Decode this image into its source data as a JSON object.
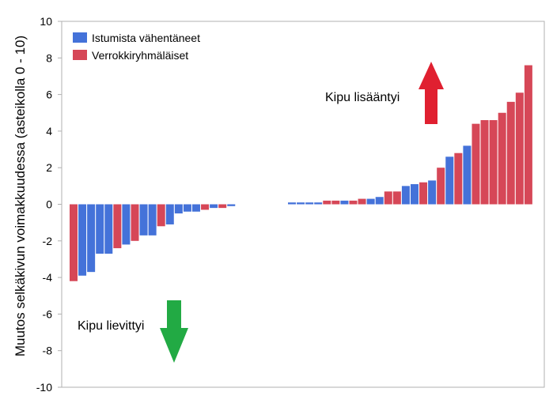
{
  "chart_data": {
    "type": "bar",
    "title": "",
    "xlabel": "",
    "ylabel": "Muutos selkäkivun voimakkuudessa (asteikolla 0 - 10)",
    "ylim": [
      -10,
      10
    ],
    "yticks": [
      -10,
      -8,
      -6,
      -4,
      -2,
      0,
      2,
      4,
      6,
      8,
      10
    ],
    "grid": false,
    "legend_position": "top-left",
    "series": [
      {
        "name": "Istumista vähentäneet",
        "color": "#4472d9"
      },
      {
        "name": "Verrokkiryhmäläiset",
        "color": "#d64757"
      }
    ],
    "groups": [
      {
        "name": "decreased",
        "bars": [
          {
            "value": -4.2,
            "series": 1
          },
          {
            "value": -3.9,
            "series": 0
          },
          {
            "value": -3.7,
            "series": 0
          },
          {
            "value": -2.7,
            "series": 0
          },
          {
            "value": -2.7,
            "series": 0
          },
          {
            "value": -2.4,
            "series": 1
          },
          {
            "value": -2.2,
            "series": 0
          },
          {
            "value": -2.0,
            "series": 1
          },
          {
            "value": -1.7,
            "series": 0
          },
          {
            "value": -1.7,
            "series": 0
          },
          {
            "value": -1.2,
            "series": 1
          },
          {
            "value": -1.1,
            "series": 0
          },
          {
            "value": -0.5,
            "series": 0
          },
          {
            "value": -0.4,
            "series": 0
          },
          {
            "value": -0.4,
            "series": 0
          },
          {
            "value": -0.3,
            "series": 1
          },
          {
            "value": -0.2,
            "series": 0
          },
          {
            "value": -0.2,
            "series": 1
          },
          {
            "value": -0.1,
            "series": 0
          }
        ]
      },
      {
        "name": "increased",
        "bars": [
          {
            "value": 0.1,
            "series": 0
          },
          {
            "value": 0.1,
            "series": 0
          },
          {
            "value": 0.1,
            "series": 0
          },
          {
            "value": 0.1,
            "series": 0
          },
          {
            "value": 0.2,
            "series": 1
          },
          {
            "value": 0.2,
            "series": 1
          },
          {
            "value": 0.2,
            "series": 0
          },
          {
            "value": 0.2,
            "series": 1
          },
          {
            "value": 0.3,
            "series": 1
          },
          {
            "value": 0.3,
            "series": 0
          },
          {
            "value": 0.4,
            "series": 0
          },
          {
            "value": 0.7,
            "series": 1
          },
          {
            "value": 0.7,
            "series": 1
          },
          {
            "value": 1.0,
            "series": 0
          },
          {
            "value": 1.1,
            "series": 0
          },
          {
            "value": 1.2,
            "series": 1
          },
          {
            "value": 1.3,
            "series": 0
          },
          {
            "value": 2.0,
            "series": 1
          },
          {
            "value": 2.6,
            "series": 0
          },
          {
            "value": 2.8,
            "series": 1
          },
          {
            "value": 3.2,
            "series": 0
          },
          {
            "value": 4.4,
            "series": 1
          },
          {
            "value": 4.6,
            "series": 1
          },
          {
            "value": 4.6,
            "series": 1
          },
          {
            "value": 5.0,
            "series": 1
          },
          {
            "value": 5.6,
            "series": 1
          },
          {
            "value": 6.1,
            "series": 1
          },
          {
            "value": 7.6,
            "series": 1
          }
        ]
      }
    ],
    "annotations": [
      {
        "text": "Kipu lisääntyi",
        "arrow": "up",
        "color": "#e02030"
      },
      {
        "text": "Kipu lievittyi",
        "arrow": "down",
        "color": "#22aa44"
      }
    ]
  }
}
